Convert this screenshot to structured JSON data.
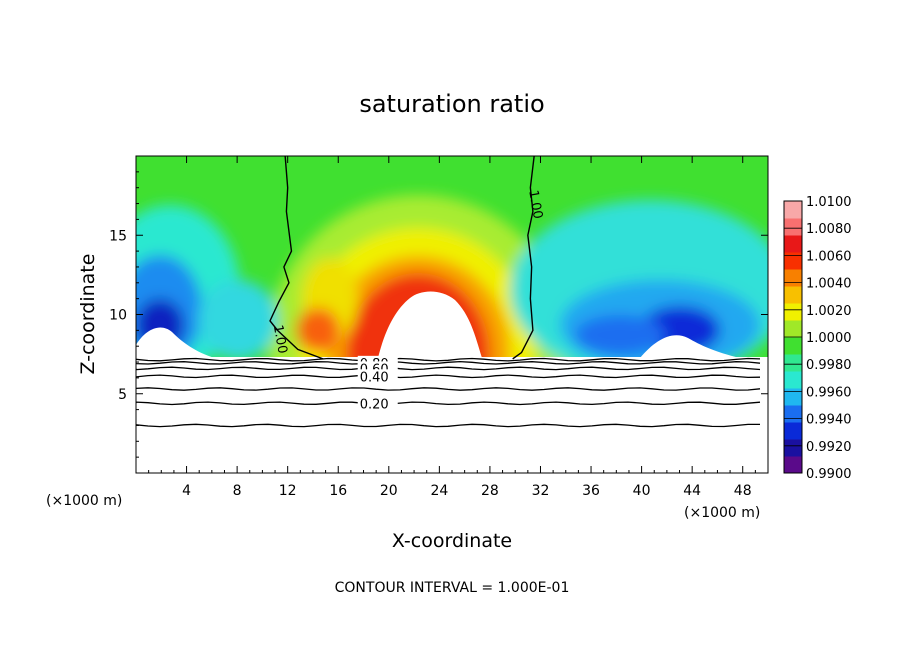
{
  "chart_data": {
    "type": "heatmap",
    "title": "saturation ratio",
    "xlabel": "X-coordinate",
    "ylabel": "Z-coordinate",
    "x_unit_left": "(×1000 m)",
    "x_unit_right": "(×1000 m)",
    "footer": "CONTOUR INTERVAL = 1.000E-01",
    "xlim": [
      0,
      50
    ],
    "ylim": [
      0,
      20
    ],
    "x_ticks": [
      4,
      8,
      12,
      16,
      20,
      24,
      28,
      32,
      36,
      40,
      44,
      48
    ],
    "y_ticks": [
      5,
      10,
      15
    ],
    "colorbar": {
      "min": 0.99,
      "max": 1.01,
      "labels": [
        "1.0100",
        "1.0080",
        "1.0060",
        "1.0040",
        "1.0020",
        "1.0000",
        "0.9980",
        "0.9960",
        "0.9940",
        "0.9920",
        "0.9900"
      ],
      "colors": [
        "#5a0a8a",
        "#1a10a0",
        "#0a2ad8",
        "#1a6ef0",
        "#20b8f0",
        "#2ae8d0",
        "#30e890",
        "#40e030",
        "#a0e828",
        "#f0f000",
        "#f8c000",
        "#f88000",
        "#f83000",
        "#e81818",
        "#f87070",
        "#f8a8a8"
      ]
    },
    "contours": [
      {
        "label": "1.00",
        "x": [
          11.8,
          12.0,
          11.9,
          12.3,
          11.7,
          12.1,
          11.3,
          10.6,
          11.2,
          12.8,
          14.8
        ],
        "y": [
          20.0,
          18.0,
          16.5,
          14.0,
          13.0,
          12.0,
          10.8,
          9.6,
          9.0,
          7.8,
          7.2
        ]
      },
      {
        "label": "1.00",
        "x": [
          31.5,
          31.2,
          31.4,
          31.0,
          31.3,
          31.2,
          31.4,
          30.5,
          29.8
        ],
        "y": [
          20.0,
          18.0,
          16.5,
          15.0,
          13.0,
          11.0,
          9.0,
          7.6,
          7.2
        ]
      }
    ],
    "contour_lines": [
      {
        "label": "",
        "z": 7.15
      },
      {
        "label": "0.80",
        "z": 6.95
      },
      {
        "label": "0.60",
        "z": 6.6
      },
      {
        "label": "0.40",
        "z": 6.1
      },
      {
        "label": "",
        "z": 5.3
      },
      {
        "label": "0.20",
        "z": 4.4
      },
      {
        "label": "",
        "z": 3.0
      }
    ]
  }
}
